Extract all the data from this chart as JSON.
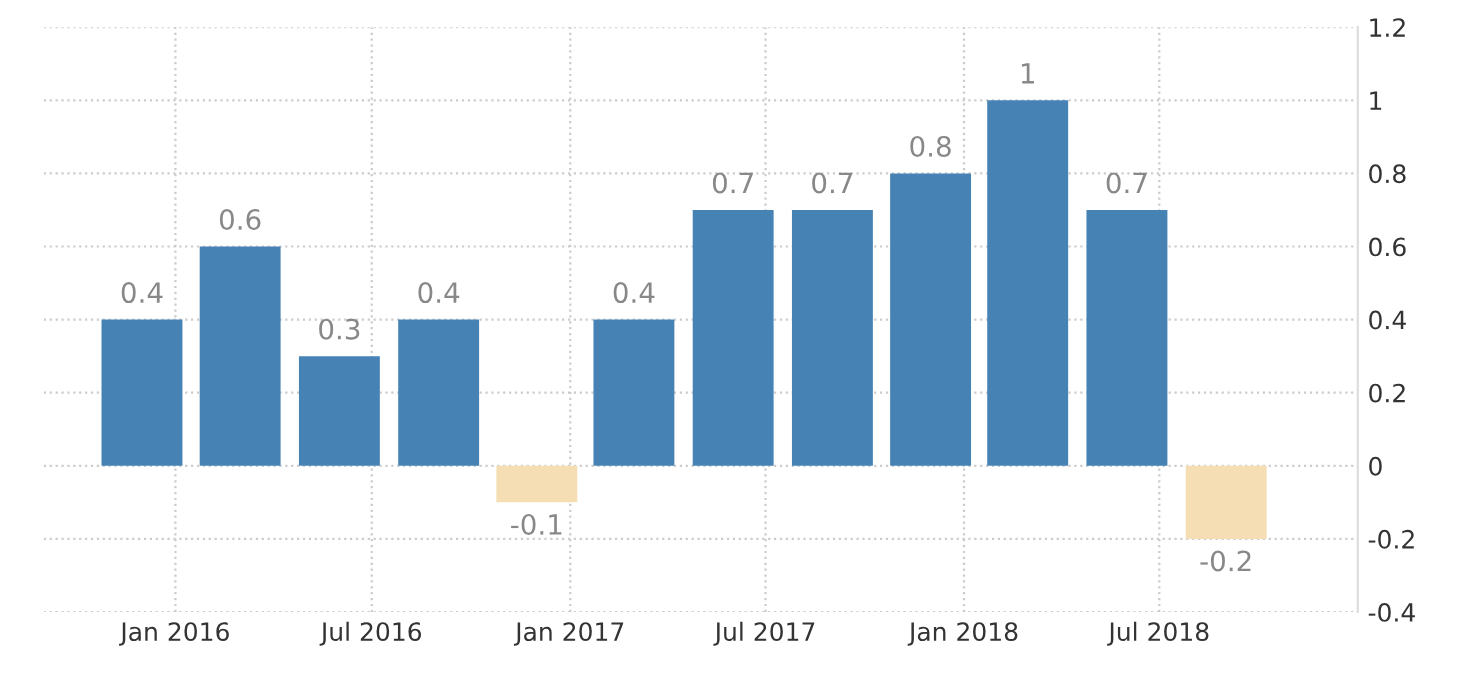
{
  "chart_data": {
    "type": "bar",
    "x": [
      "2015-12",
      "2016-03",
      "2016-06",
      "2016-09",
      "2016-12",
      "2017-03",
      "2017-06",
      "2017-09",
      "2017-12",
      "2018-03",
      "2018-06",
      "2018-09"
    ],
    "values": [
      0.4,
      0.6,
      0.3,
      0.4,
      -0.1,
      0.4,
      0.7,
      0.7,
      0.8,
      1,
      0.7,
      -0.2
    ],
    "colors": [
      "#4682b4",
      "#4682b4",
      "#4682b4",
      "#4682b4",
      "#f5deb3",
      "#4682b4",
      "#4682b4",
      "#4682b4",
      "#4682b4",
      "#4682b4",
      "#4682b4",
      "#f5deb3"
    ],
    "data_labels": true,
    "xlim": [
      "2015-09-01",
      "2019-01-01"
    ],
    "xticks": [
      {
        "value": "2016-01-01",
        "label": "Jan 2016"
      },
      {
        "value": "2016-07-01",
        "label": "Jul 2016"
      },
      {
        "value": "2017-01-01",
        "label": "Jan 2017"
      },
      {
        "value": "2017-07-01",
        "label": "Jul 2017"
      },
      {
        "value": "2018-01-01",
        "label": "Jan 2018"
      },
      {
        "value": "2018-07-01",
        "label": "Jul 2018"
      }
    ],
    "ylim": [
      -0.4,
      1.2
    ],
    "yticks": [
      -0.4,
      -0.2,
      0,
      0.2,
      0.4,
      0.6,
      0.8,
      1,
      1.2
    ],
    "grid": true
  }
}
